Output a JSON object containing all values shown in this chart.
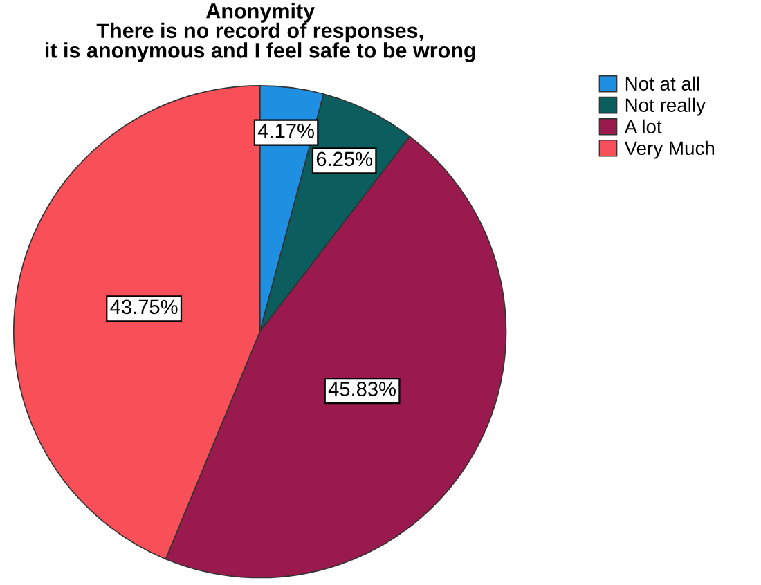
{
  "chart_data": {
    "type": "pie",
    "title": "Anonymity\nThere is no record of responses,\nit is anonymous and I feel safe to be wrong",
    "categories": [
      "Not at all",
      "Not really",
      "A lot",
      "Very Much"
    ],
    "values": [
      4.17,
      6.25,
      45.83,
      43.75
    ],
    "colors": [
      "#1e8fe1",
      "#0b5e5d",
      "#9b1a4e",
      "#f84f58"
    ],
    "value_labels": [
      "4.17%",
      "6.25%",
      "45.83%",
      "43.75%"
    ],
    "legend": "top right"
  }
}
